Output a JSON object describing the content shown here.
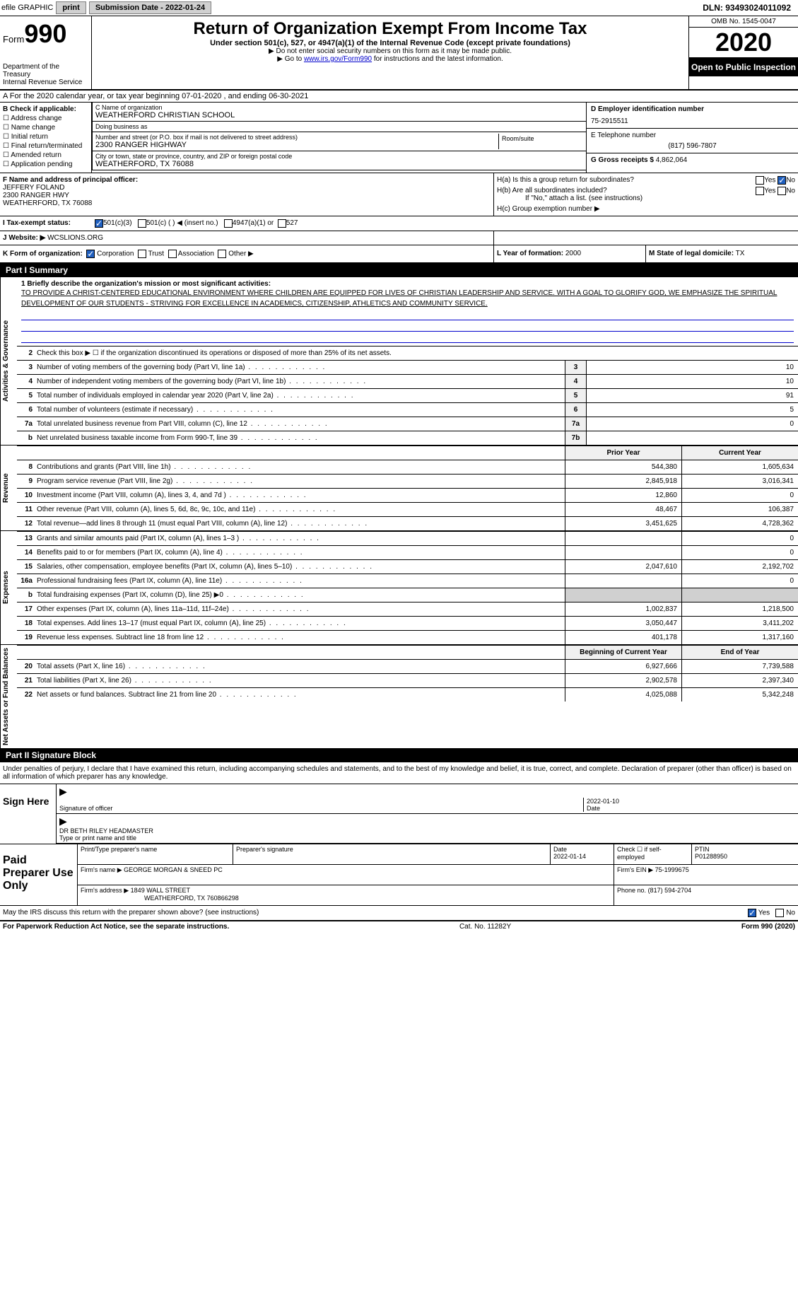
{
  "top": {
    "efile": "efile GRAPHIC",
    "print": "print",
    "sub_date_label": "Submission Date - 2022-01-24",
    "dln": "DLN: 93493024011092"
  },
  "header": {
    "form_label": "Form",
    "form_num": "990",
    "dept": "Department of the Treasury",
    "irs": "Internal Revenue Service",
    "title": "Return of Organization Exempt From Income Tax",
    "subtitle": "Under section 501(c), 527, or 4947(a)(1) of the Internal Revenue Code (except private foundations)",
    "note1": "▶ Do not enter social security numbers on this form as it may be made public.",
    "note2_pre": "▶ Go to ",
    "note2_link": "www.irs.gov/Form990",
    "note2_post": " for instructions and the latest information.",
    "omb": "OMB No. 1545-0047",
    "year": "2020",
    "open": "Open to Public Inspection"
  },
  "section_a": "A For the 2020 calendar year, or tax year beginning 07-01-2020    , and ending 06-30-2021",
  "col_b": {
    "title": "B Check if applicable:",
    "items": [
      "Address change",
      "Name change",
      "Initial return",
      "Final return/terminated",
      "Amended return",
      "Application pending"
    ]
  },
  "col_c": {
    "name_label": "C Name of organization",
    "name": "WEATHERFORD CHRISTIAN SCHOOL",
    "dba_label": "Doing business as",
    "dba": "",
    "addr_label": "Number and street (or P.O. box if mail is not delivered to street address)",
    "addr": "2300 RANGER HIGHWAY",
    "room_label": "Room/suite",
    "city_label": "City or town, state or province, country, and ZIP or foreign postal code",
    "city": "WEATHERFORD, TX  76088"
  },
  "col_d": {
    "ein_label": "D Employer identification number",
    "ein": "75-2915511",
    "phone_label": "E Telephone number",
    "phone": "(817) 596-7807",
    "gross_label": "G Gross receipts $",
    "gross": "4,862,064"
  },
  "row_f": {
    "label": "F Name and address of principal officer:",
    "name": "JEFFERY FOLAND",
    "addr1": "2300 RANGER HWY",
    "addr2": "WEATHERFORD, TX  76088"
  },
  "row_h": {
    "ha": "H(a)  Is this a group return for subordinates?",
    "hb": "H(b)  Are all subordinates included?",
    "hb_note": "If \"No,\" attach a list. (see instructions)",
    "hc": "H(c)  Group exemption number ▶"
  },
  "row_i": {
    "label": "I  Tax-exempt status:",
    "opts": [
      "501(c)(3)",
      "501(c) (  ) ◀ (insert no.)",
      "4947(a)(1) or",
      "527"
    ]
  },
  "row_j": {
    "label": "J  Website: ▶",
    "val": "WCSLIONS.ORG"
  },
  "row_k": {
    "label": "K Form of organization:",
    "opts": [
      "Corporation",
      "Trust",
      "Association",
      "Other ▶"
    ],
    "l_label": "L Year of formation:",
    "l_val": "2000",
    "m_label": "M State of legal domicile:",
    "m_val": "TX"
  },
  "part1": {
    "header": "Part I      Summary",
    "q1": "1  Briefly describe the organization's mission or most significant activities:",
    "q1_text": "TO PROVIDE A CHRIST-CENTERED EDUCATIONAL ENVIRONMENT WHERE CHILDREN ARE EQUIPPED FOR LIVES OF CHRISTIAN LEADERSHIP AND SERVICE. WITH A GOAL TO GLORIFY GOD, WE EMPHASIZE THE SPIRITUAL DEVELOPMENT OF OUR STUDENTS - STRIVING FOR EXCELLENCE IN ACADEMICS, CITIZENSHIP, ATHLETICS AND COMMUNITY SERVICE.",
    "q2": "Check this box ▶ ☐ if the organization discontinued its operations or disposed of more than 25% of its net assets.",
    "gov_rows": [
      {
        "n": "3",
        "txt": "Number of voting members of the governing body (Part VI, line 1a)",
        "cell": "3",
        "val": "10"
      },
      {
        "n": "4",
        "txt": "Number of independent voting members of the governing body (Part VI, line 1b)",
        "cell": "4",
        "val": "10"
      },
      {
        "n": "5",
        "txt": "Total number of individuals employed in calendar year 2020 (Part V, line 2a)",
        "cell": "5",
        "val": "91"
      },
      {
        "n": "6",
        "txt": "Total number of volunteers (estimate if necessary)",
        "cell": "6",
        "val": "5"
      },
      {
        "n": "7a",
        "txt": "Total unrelated business revenue from Part VIII, column (C), line 12",
        "cell": "7a",
        "val": "0"
      },
      {
        "n": "b",
        "txt": "Net unrelated business taxable income from Form 990-T, line 39",
        "cell": "7b",
        "val": ""
      }
    ],
    "prior_year": "Prior Year",
    "current_year": "Current Year",
    "rev_rows": [
      {
        "n": "8",
        "txt": "Contributions and grants (Part VIII, line 1h)",
        "v1": "544,380",
        "v2": "1,605,634"
      },
      {
        "n": "9",
        "txt": "Program service revenue (Part VIII, line 2g)",
        "v1": "2,845,918",
        "v2": "3,016,341"
      },
      {
        "n": "10",
        "txt": "Investment income (Part VIII, column (A), lines 3, 4, and 7d )",
        "v1": "12,860",
        "v2": "0"
      },
      {
        "n": "11",
        "txt": "Other revenue (Part VIII, column (A), lines 5, 6d, 8c, 9c, 10c, and 11e)",
        "v1": "48,467",
        "v2": "106,387"
      },
      {
        "n": "12",
        "txt": "Total revenue—add lines 8 through 11 (must equal Part VIII, column (A), line 12)",
        "v1": "3,451,625",
        "v2": "4,728,362"
      }
    ],
    "exp_rows": [
      {
        "n": "13",
        "txt": "Grants and similar amounts paid (Part IX, column (A), lines 1–3 )",
        "v1": "",
        "v2": "0"
      },
      {
        "n": "14",
        "txt": "Benefits paid to or for members (Part IX, column (A), line 4)",
        "v1": "",
        "v2": "0"
      },
      {
        "n": "15",
        "txt": "Salaries, other compensation, employee benefits (Part IX, column (A), lines 5–10)",
        "v1": "2,047,610",
        "v2": "2,192,702"
      },
      {
        "n": "16a",
        "txt": "Professional fundraising fees (Part IX, column (A), line 11e)",
        "v1": "",
        "v2": "0"
      },
      {
        "n": "b",
        "txt": "Total fundraising expenses (Part IX, column (D), line 25) ▶0",
        "v1": "",
        "v2": "",
        "grey": true
      },
      {
        "n": "17",
        "txt": "Other expenses (Part IX, column (A), lines 11a–11d, 11f–24e)",
        "v1": "1,002,837",
        "v2": "1,218,500"
      },
      {
        "n": "18",
        "txt": "Total expenses. Add lines 13–17 (must equal Part IX, column (A), line 25)",
        "v1": "3,050,447",
        "v2": "3,411,202"
      },
      {
        "n": "19",
        "txt": "Revenue less expenses. Subtract line 18 from line 12",
        "v1": "401,178",
        "v2": "1,317,160"
      }
    ],
    "begin_year": "Beginning of Current Year",
    "end_year": "End of Year",
    "net_rows": [
      {
        "n": "20",
        "txt": "Total assets (Part X, line 16)",
        "v1": "6,927,666",
        "v2": "7,739,588"
      },
      {
        "n": "21",
        "txt": "Total liabilities (Part X, line 26)",
        "v1": "2,902,578",
        "v2": "2,397,340"
      },
      {
        "n": "22",
        "txt": "Net assets or fund balances. Subtract line 21 from line 20",
        "v1": "4,025,088",
        "v2": "5,342,248"
      }
    ],
    "vtab_gov": "Activities & Governance",
    "vtab_rev": "Revenue",
    "vtab_exp": "Expenses",
    "vtab_net": "Net Assets or Fund Balances"
  },
  "part2": {
    "header": "Part II     Signature Block",
    "declare": "Under penalties of perjury, I declare that I have examined this return, including accompanying schedules and statements, and to the best of my knowledge and belief, it is true, correct, and complete. Declaration of preparer (other than officer) is based on all information of which preparer has any knowledge.",
    "sign_here": "Sign Here",
    "sig_officer": "Signature of officer",
    "sig_date": "2022-01-10",
    "date_label": "Date",
    "officer_name": "DR BETH RILEY  HEADMASTER",
    "type_name": "Type or print name and title",
    "paid_label": "Paid Preparer Use Only",
    "prep_name_label": "Print/Type preparer's name",
    "prep_sig_label": "Preparer's signature",
    "prep_date": "2022-01-14",
    "check_if": "Check ☐ if self-employed",
    "ptin_label": "PTIN",
    "ptin": "P01288950",
    "firm_name_label": "Firm's name    ▶",
    "firm_name": "GEORGE MORGAN & SNEED PC",
    "firm_ein_label": "Firm's EIN ▶",
    "firm_ein": "75-1999675",
    "firm_addr_label": "Firm's address ▶",
    "firm_addr1": "1849 WALL STREET",
    "firm_addr2": "WEATHERFORD, TX  760866298",
    "firm_phone_label": "Phone no.",
    "firm_phone": "(817) 594-2704",
    "discuss": "May the IRS discuss this return with the preparer shown above? (see instructions)",
    "yes": "Yes",
    "no": "No"
  },
  "footer": {
    "left": "For Paperwork Reduction Act Notice, see the separate instructions.",
    "mid": "Cat. No. 11282Y",
    "right": "Form 990 (2020)"
  }
}
